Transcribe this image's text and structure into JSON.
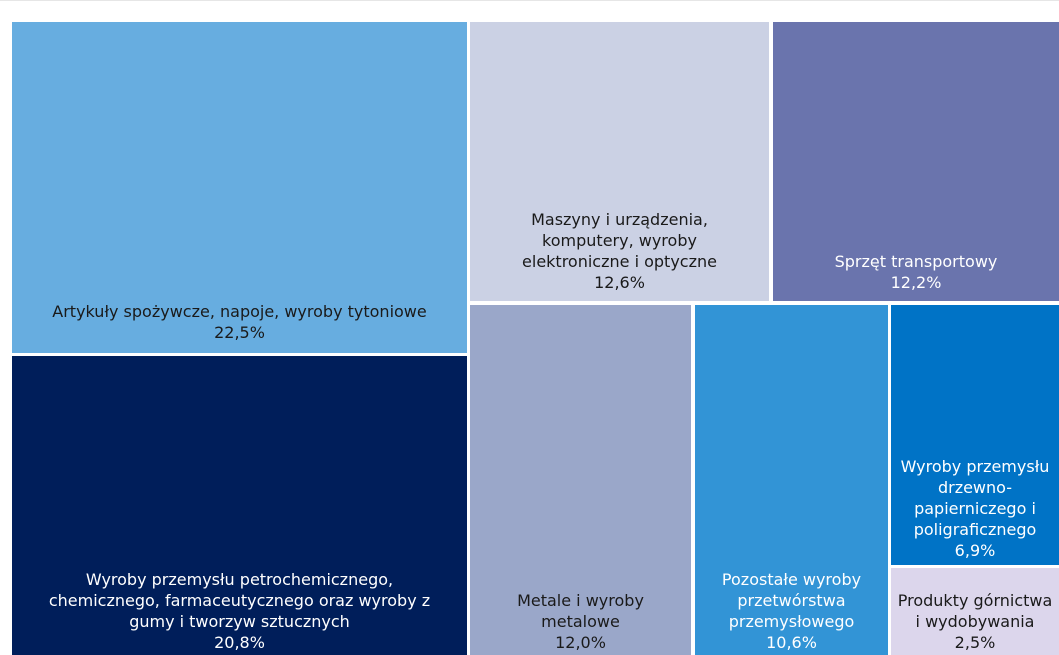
{
  "chart_data": {
    "type": "treemap",
    "unit": "%",
    "items": [
      {
        "key": "spozywcze",
        "label": "Artykuły spożywcze, napoje, wyroby tytoniowe",
        "value_label": "22,5%",
        "value": 22.5,
        "color": "#67ade0",
        "text_color": "#1a1a1a"
      },
      {
        "key": "maszyny",
        "label": "Maszyny i urządzenia,\nkomputery, wyroby\nelektroniczne i optyczne",
        "value_label": "12,6%",
        "value": 12.6,
        "color": "#cbd1e4",
        "text_color": "#1a1a1a"
      },
      {
        "key": "transport",
        "label": "Sprzęt transportowy",
        "value_label": "12,2%",
        "value": 12.2,
        "color": "#6a74ad",
        "text_color": "#ffffff"
      },
      {
        "key": "petrochem",
        "label": "Wyroby przemysłu petrochemicznego,\nchemicznego, farmaceutycznego oraz wyroby z\ngumy i tworzyw sztucznych",
        "value_label": "20,8%",
        "value": 20.8,
        "color": "#001e5a",
        "text_color": "#ffffff"
      },
      {
        "key": "metale",
        "label": "Metale i wyroby\nmetalowe",
        "value_label": "12,0%",
        "value": 12.0,
        "color": "#9aa7c9",
        "text_color": "#1a1a1a"
      },
      {
        "key": "pozostale",
        "label": "Pozostałe wyroby\nprzetwórstwa\nprzemysłowego",
        "value_label": "10,6%",
        "value": 10.6,
        "color": "#3294d6",
        "text_color": "#ffffff"
      },
      {
        "key": "drzewno",
        "label": "Wyroby przemysłu\ndrzewno-\npapierniczego i\npoligraficznego",
        "value_label": "6,9%",
        "value": 6.9,
        "color": "#0073c6",
        "text_color": "#ffffff"
      },
      {
        "key": "gornictwo",
        "label": "Produkty górnictwa\ni wydobywania",
        "value_label": "2,5%",
        "value": 2.5,
        "color": "#dcd6ec",
        "text_color": "#1a1a1a"
      }
    ]
  }
}
